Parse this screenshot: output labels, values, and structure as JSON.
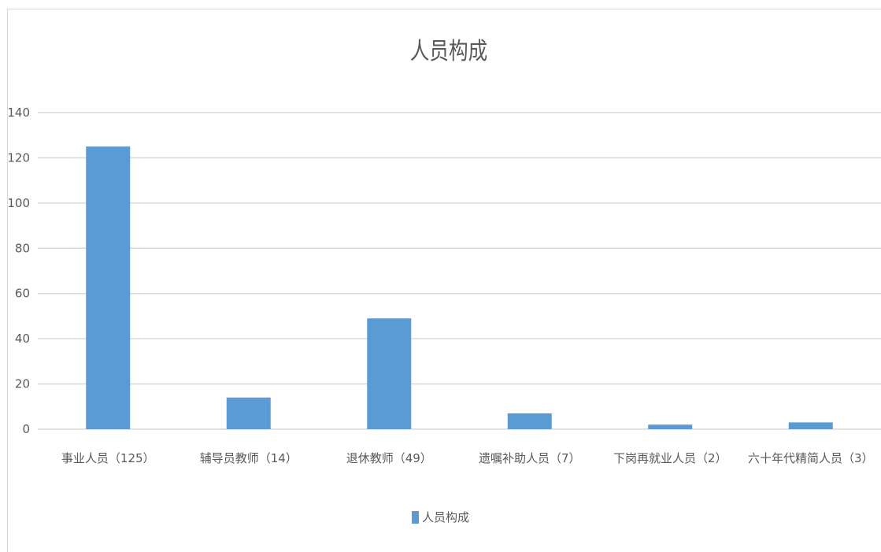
{
  "chart_data": {
    "type": "bar",
    "title": "人员构成",
    "categories": [
      "事业人员（125）",
      "辅导员教师（14）",
      "退休教师（49）",
      "遗嘱补助人员（7）",
      "下岗再就业人员（2）",
      "六十年代精简人员（3）"
    ],
    "series": [
      {
        "name": "人员构成",
        "values": [
          125,
          14,
          49,
          7,
          2,
          3
        ]
      }
    ],
    "ylim": [
      0,
      140
    ],
    "yticks": [
      0,
      20,
      40,
      60,
      80,
      100,
      120,
      140
    ],
    "grid": true,
    "legend_position": "bottom",
    "bar_color": "#5b9bd5",
    "grid_color": "#d9d9d9"
  }
}
